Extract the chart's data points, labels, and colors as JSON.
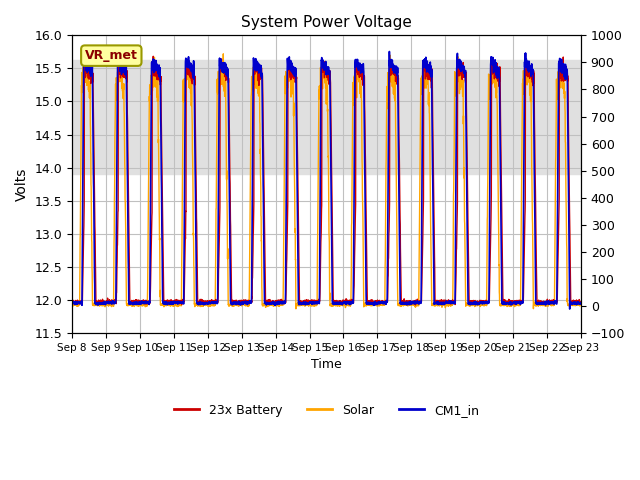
{
  "title": "System Power Voltage",
  "xlabel": "Time",
  "ylabel_left": "Volts",
  "ylim_left": [
    11.5,
    16.0
  ],
  "ylim_right": [
    -100,
    1000
  ],
  "yticks_left": [
    11.5,
    12.0,
    12.5,
    13.0,
    13.5,
    14.0,
    14.5,
    15.0,
    15.5,
    16.0
  ],
  "yticks_right": [
    -100,
    0,
    100,
    200,
    300,
    400,
    500,
    600,
    700,
    800,
    900,
    1000
  ],
  "xtick_positions": [
    0,
    1,
    2,
    3,
    4,
    5,
    6,
    7,
    8,
    9,
    10,
    11,
    12,
    13,
    14,
    15
  ],
  "xtick_labels": [
    "Sep 8",
    "Sep 9",
    "Sep 10",
    "Sep 11",
    "Sep 12",
    "Sep 13",
    "Sep 14",
    "Sep 15",
    "Sep 16",
    "Sep 17",
    "Sep 18",
    "Sep 19",
    "Sep 20",
    "Sep 21",
    "Sep 22",
    "Sep 23"
  ],
  "num_days": 15,
  "color_battery": "#CC0000",
  "color_solar": "#FFA500",
  "color_cm1": "#0000CC",
  "color_grid": "#C0C0C0",
  "color_bg_band": "#E0E0E0",
  "legend_labels": [
    "23x Battery",
    "Solar",
    "CM1_in"
  ],
  "vr_met_label": "VR_met",
  "vr_met_bg": "#FFFFA0",
  "vr_met_border": "#999900",
  "vr_met_text_color": "#8B0000"
}
